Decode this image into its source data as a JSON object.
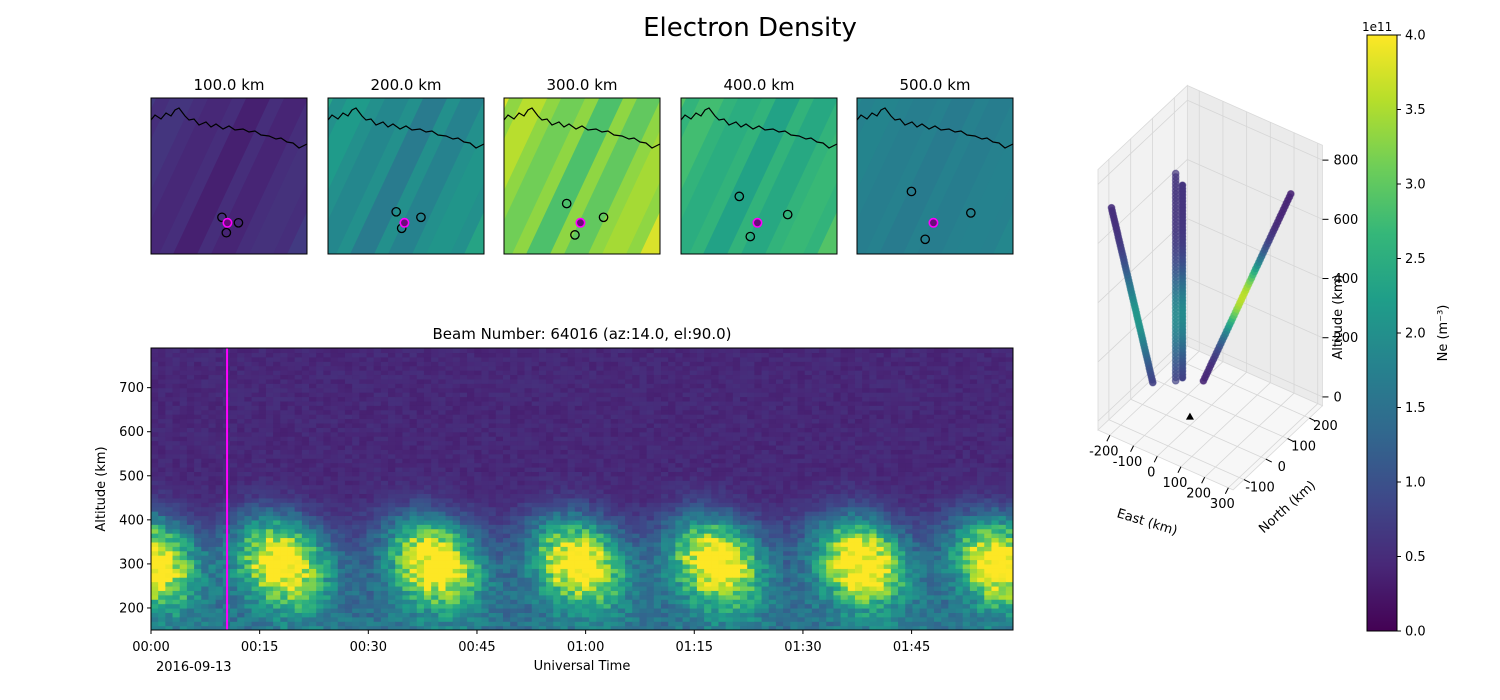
{
  "figure": {
    "title": "Electron Density"
  },
  "chart_data": [
    {
      "type": "heatmap",
      "name": "altitude slice maps",
      "panels": [
        {
          "title": "100.0 km",
          "band_intensity": 0.13,
          "band_amplitude": 0.05,
          "site_markers": [
            {
              "east_km": -10,
              "north_km": 10
            },
            {
              "east_km": 20,
              "north_km": 0
            },
            {
              "east_km": -2,
              "north_km": -18
            }
          ],
          "beam_marker": {
            "east_km": 0,
            "north_km": 0
          }
        },
        {
          "title": "200.0 km",
          "band_intensity": 0.5,
          "band_amplitude": 0.1,
          "site_markers": [
            {
              "east_km": -15,
              "north_km": 20
            },
            {
              "east_km": 30,
              "north_km": 10
            },
            {
              "east_km": -5,
              "north_km": -10
            }
          ],
          "beam_marker": {
            "east_km": 0,
            "north_km": 0
          }
        },
        {
          "title": "300.0 km",
          "band_intensity": 0.83,
          "band_amplitude": 0.14,
          "site_markers": [
            {
              "east_km": -25,
              "north_km": 35
            },
            {
              "east_km": 42,
              "north_km": 10
            },
            {
              "east_km": -10,
              "north_km": -22
            }
          ],
          "beam_marker": {
            "east_km": 0,
            "north_km": 0
          }
        },
        {
          "title": "400.0 km",
          "band_intensity": 0.65,
          "band_amplitude": 0.09,
          "site_markers": [
            {
              "east_km": -33,
              "north_km": 48
            },
            {
              "east_km": 55,
              "north_km": 15
            },
            {
              "east_km": -13,
              "north_km": -25
            }
          ],
          "beam_marker": {
            "east_km": 0,
            "north_km": 0
          }
        },
        {
          "title": "500.0 km",
          "band_intensity": 0.44,
          "band_amplitude": 0.03,
          "site_markers": [
            {
              "east_km": -40,
              "north_km": 57
            },
            {
              "east_km": 68,
              "north_km": 18
            },
            {
              "east_km": -15,
              "north_km": -30
            }
          ],
          "beam_marker": {
            "east_km": 0,
            "north_km": 0
          }
        }
      ]
    },
    {
      "type": "heatmap",
      "name": "range-time intensity",
      "title": "Beam Number: 64016 (az:14.0, el:90.0)",
      "xlabel": "Universal Time",
      "ylabel": "Altitude (km)",
      "date_label": "2016-09-13",
      "x_tick_labels": [
        "00:00",
        "00:15",
        "00:30",
        "00:45",
        "01:00",
        "01:15",
        "01:30",
        "01:45"
      ],
      "x_tick_minutes": [
        0,
        15,
        30,
        45,
        60,
        75,
        90,
        105
      ],
      "xlim_minutes": [
        0,
        119
      ],
      "y_ticks": [
        200,
        300,
        400,
        500,
        600,
        700
      ],
      "ylim": [
        150,
        790
      ],
      "peak_times_minutes": [
        0,
        18,
        39,
        59,
        78,
        98,
        117
      ],
      "peak_altitude_km": 305,
      "peak_density_m3": 380000000000.0,
      "cursor_time_minutes": 10.5,
      "cursor_color": "#ff00ff"
    },
    {
      "type": "scatter",
      "name": "3D beam geometry",
      "xlabel": "East (km)",
      "ylabel": "North (km)",
      "zlabel": "Altitude (km)",
      "x_ticks": [
        -200,
        -100,
        0,
        100,
        200,
        300
      ],
      "y_ticks": [
        -100,
        0,
        100,
        200
      ],
      "z_ticks": [
        0,
        200,
        400,
        600,
        800
      ],
      "xlim": [
        -250,
        320
      ],
      "ylim": [
        -150,
        260
      ],
      "zlim": [
        -30,
        850
      ],
      "beams": [
        {
          "start": [
            -60,
            0,
            100
          ],
          "end": [
            -60,
            0,
            800
          ],
          "color": "#4a6b94",
          "alpha": 0.7
        },
        {
          "start": [
            -50,
            20,
            100
          ],
          "end": [
            -50,
            20,
            750
          ],
          "color": "#3c5d8c",
          "alpha": 1.0
        },
        {
          "start": [
            -120,
            -40,
            100
          ],
          "end": [
            -230,
            -110,
            700
          ],
          "color": "#31688e",
          "alpha": 0.9
        },
        {
          "start": [
            20,
            40,
            100
          ],
          "end": [
            260,
            180,
            720
          ],
          "color": "#35b779",
          "alpha": 0.9
        }
      ],
      "site": {
        "east_km": 0,
        "north_km": 0,
        "alt_km": 0,
        "marker": "triangle"
      }
    },
    {
      "type": "colorbar",
      "name": "Ne colorbar",
      "label": "Ne (m⁻³)",
      "exponent_label": "1e11",
      "tick_labels": [
        "0.0",
        "0.5",
        "1.0",
        "1.5",
        "2.0",
        "2.5",
        "3.0",
        "3.5",
        "4.0"
      ],
      "range": [
        0,
        4.0
      ],
      "colormap": "viridis",
      "colormap_stops": [
        "#440154",
        "#482878",
        "#3e4989",
        "#31688e",
        "#26828e",
        "#1f9e89",
        "#35b779",
        "#6ece58",
        "#b5de2b",
        "#fde725"
      ]
    }
  ]
}
